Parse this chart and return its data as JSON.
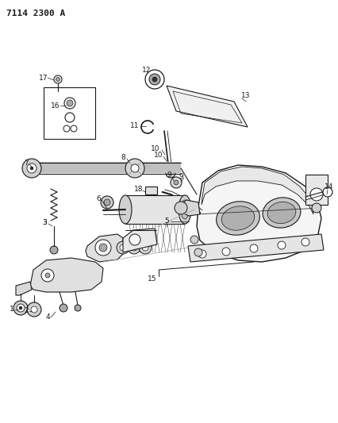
{
  "title": "7114 2300 A",
  "bg_color": "#ffffff",
  "line_color": "#1a1a1a",
  "figsize": [
    4.27,
    5.33
  ],
  "dpi": 100,
  "gray": "#555555",
  "lightgray": "#aaaaaa",
  "darkgray": "#333333"
}
